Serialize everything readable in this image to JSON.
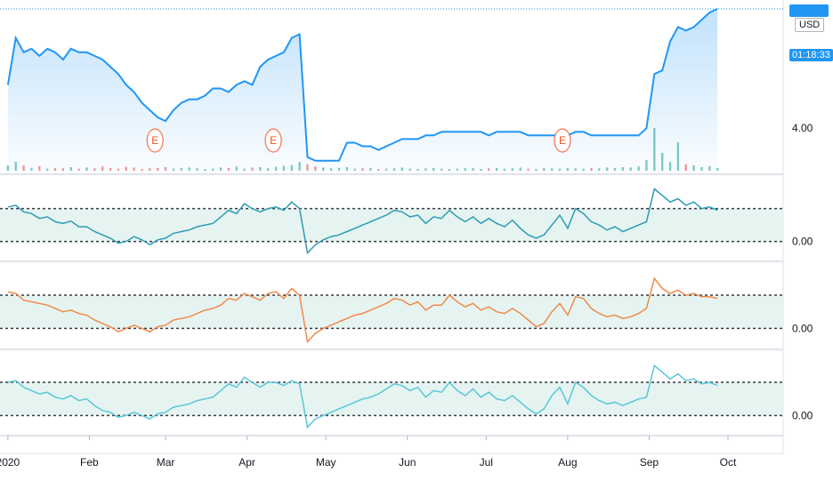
{
  "chart_data": [
    {
      "type": "line",
      "pane": "price",
      "currency": "USD",
      "countdown": "01:18:33",
      "y_tick_labels": [
        "4.00"
      ],
      "earnings_marker": "E",
      "earnings_x": [
        56,
        101,
        211
      ],
      "x": [
        0,
        3,
        6,
        9,
        12,
        15,
        18,
        21,
        24,
        27,
        30,
        33,
        36,
        39,
        42,
        45,
        48,
        51,
        54,
        57,
        60,
        63,
        66,
        69,
        72,
        75,
        78,
        81,
        84,
        87,
        90,
        93,
        96,
        99,
        102,
        105,
        108,
        111,
        114,
        117,
        120,
        123,
        126,
        129,
        132,
        135,
        138,
        141,
        144,
        147,
        150,
        153,
        156,
        159,
        162,
        165,
        168,
        171,
        174,
        177,
        180,
        183,
        186,
        189,
        192,
        195,
        198,
        201,
        204,
        207,
        210,
        213,
        216,
        219,
        222,
        225,
        228,
        231,
        234,
        237,
        240,
        243,
        246,
        249,
        252,
        255,
        258,
        261,
        264,
        267,
        270
      ],
      "values": [
        5.2,
        6.5,
        6.1,
        6.2,
        6.0,
        6.2,
        6.1,
        5.9,
        6.2,
        6.1,
        6.1,
        6.0,
        5.9,
        5.7,
        5.5,
        5.2,
        5.0,
        4.7,
        4.5,
        4.3,
        4.2,
        4.5,
        4.7,
        4.8,
        4.8,
        4.9,
        5.1,
        5.1,
        5.0,
        5.2,
        5.3,
        5.2,
        5.7,
        5.9,
        6.0,
        6.1,
        6.5,
        6.6,
        3.2,
        3.1,
        3.1,
        3.1,
        3.1,
        3.6,
        3.6,
        3.5,
        3.5,
        3.4,
        3.5,
        3.6,
        3.7,
        3.7,
        3.7,
        3.8,
        3.8,
        3.9,
        3.9,
        3.9,
        3.9,
        3.9,
        3.9,
        3.8,
        3.9,
        3.9,
        3.9,
        3.9,
        3.8,
        3.8,
        3.8,
        3.8,
        3.8,
        3.8,
        3.9,
        3.9,
        3.8,
        3.8,
        3.8,
        3.8,
        3.8,
        3.8,
        3.8,
        4.0,
        5.5,
        5.6,
        6.4,
        6.8,
        6.7,
        6.8,
        7.0,
        7.2,
        7.3
      ],
      "volume": [
        1.5,
        2.5,
        1.5,
        0.8,
        1.3,
        0.6,
        0.8,
        0.7,
        1.0,
        0.6,
        0.9,
        0.7,
        1.2,
        0.8,
        0.6,
        1.1,
        0.9,
        0.5,
        0.7,
        0.8,
        1.0,
        0.6,
        0.8,
        0.9,
        0.7,
        0.5,
        0.6,
        0.9,
        0.8,
        1.2,
        0.6,
        0.9,
        1.0,
        0.7,
        1.1,
        1.4,
        1.6,
        2.5,
        1.8,
        1.2,
        0.9,
        0.7,
        0.8,
        1.0,
        0.6,
        0.7,
        0.8,
        0.5,
        0.6,
        0.7,
        0.9,
        0.6,
        0.5,
        0.7,
        0.8,
        0.6,
        0.5,
        0.6,
        0.7,
        0.8,
        0.5,
        0.7,
        0.8,
        0.6,
        0.7,
        0.9,
        0.6,
        0.5,
        0.8,
        0.7,
        0.6,
        0.8,
        0.7,
        0.6,
        0.8,
        0.7,
        0.9,
        0.8,
        1.0,
        0.9,
        1.2,
        3.0,
        12.0,
        5.0,
        2.5,
        8.0,
        1.8,
        1.5,
        1.0,
        1.3,
        0.8
      ]
    },
    {
      "type": "line",
      "pane": "oscillator-1",
      "y_tick_labels": [
        "0.00"
      ],
      "band": [
        0.0,
        1.0
      ],
      "x": [
        0,
        3,
        6,
        9,
        12,
        15,
        18,
        21,
        24,
        27,
        30,
        33,
        36,
        39,
        42,
        45,
        48,
        51,
        54,
        57,
        60,
        63,
        66,
        69,
        72,
        75,
        78,
        81,
        84,
        87,
        90,
        93,
        96,
        99,
        102,
        105,
        108,
        111,
        114,
        117,
        120,
        123,
        126,
        129,
        132,
        135,
        138,
        141,
        144,
        147,
        150,
        153,
        156,
        159,
        162,
        165,
        168,
        171,
        174,
        177,
        180,
        183,
        186,
        189,
        192,
        195,
        198,
        201,
        204,
        207,
        210,
        213,
        216,
        219,
        222,
        225,
        228,
        231,
        234,
        237,
        240,
        243,
        246,
        249,
        252,
        255,
        258,
        261,
        264,
        267,
        270
      ],
      "values": [
        1.05,
        1.1,
        0.9,
        0.85,
        0.7,
        0.75,
        0.6,
        0.55,
        0.62,
        0.45,
        0.45,
        0.3,
        0.2,
        0.1,
        -0.05,
        0.0,
        0.15,
        0.05,
        -0.1,
        0.05,
        0.1,
        0.25,
        0.3,
        0.35,
        0.45,
        0.5,
        0.55,
        0.75,
        0.95,
        0.85,
        1.15,
        1.0,
        0.9,
        1.0,
        1.05,
        0.95,
        1.2,
        1.0,
        -0.35,
        -0.1,
        0.05,
        0.15,
        0.2,
        0.3,
        0.4,
        0.5,
        0.6,
        0.7,
        0.8,
        0.95,
        0.9,
        0.75,
        0.8,
        0.55,
        0.75,
        0.7,
        0.95,
        0.75,
        0.6,
        0.75,
        0.55,
        0.7,
        0.55,
        0.45,
        0.65,
        0.4,
        0.2,
        0.1,
        0.2,
        0.5,
        0.8,
        0.4,
        1.0,
        0.85,
        0.6,
        0.5,
        0.35,
        0.45,
        0.3,
        0.4,
        0.5,
        0.6,
        1.6,
        1.4,
        1.2,
        1.3,
        1.1,
        1.2,
        1.0,
        1.05,
        0.95
      ]
    },
    {
      "type": "line",
      "pane": "oscillator-2",
      "y_tick_labels": [
        "0.00"
      ],
      "band": [
        0.0,
        1.0
      ],
      "x": [
        0,
        3,
        6,
        9,
        12,
        15,
        18,
        21,
        24,
        27,
        30,
        33,
        36,
        39,
        42,
        45,
        48,
        51,
        54,
        57,
        60,
        63,
        66,
        69,
        72,
        75,
        78,
        81,
        84,
        87,
        90,
        93,
        96,
        99,
        102,
        105,
        108,
        111,
        114,
        117,
        120,
        123,
        126,
        129,
        132,
        135,
        138,
        141,
        144,
        147,
        150,
        153,
        156,
        159,
        162,
        165,
        168,
        171,
        174,
        177,
        180,
        183,
        186,
        189,
        192,
        195,
        198,
        201,
        204,
        207,
        210,
        213,
        216,
        219,
        222,
        225,
        228,
        231,
        234,
        237,
        240,
        243,
        246,
        249,
        252,
        255,
        258,
        261,
        264,
        267,
        270
      ],
      "values": [
        1.1,
        1.05,
        0.85,
        0.8,
        0.75,
        0.7,
        0.6,
        0.5,
        0.55,
        0.45,
        0.4,
        0.25,
        0.15,
        0.05,
        -0.1,
        0.0,
        0.1,
        0.0,
        -0.1,
        0.05,
        0.1,
        0.25,
        0.3,
        0.35,
        0.45,
        0.55,
        0.6,
        0.7,
        0.9,
        0.85,
        1.05,
        0.95,
        0.85,
        1.05,
        1.1,
        0.9,
        1.2,
        1.0,
        -0.4,
        -0.15,
        0.0,
        0.1,
        0.2,
        0.3,
        0.4,
        0.45,
        0.55,
        0.65,
        0.75,
        0.9,
        0.85,
        0.7,
        0.8,
        0.55,
        0.7,
        0.7,
        1.0,
        0.8,
        0.65,
        0.75,
        0.55,
        0.65,
        0.5,
        0.45,
        0.6,
        0.45,
        0.25,
        0.05,
        0.15,
        0.5,
        0.75,
        0.4,
        0.95,
        0.9,
        0.6,
        0.45,
        0.35,
        0.4,
        0.3,
        0.35,
        0.45,
        0.6,
        1.5,
        1.2,
        1.05,
        1.15,
        1.0,
        1.05,
        0.95,
        0.95,
        0.9
      ]
    },
    {
      "type": "line",
      "pane": "oscillator-3",
      "y_tick_labels": [
        "0.00"
      ],
      "band": [
        0.0,
        1.0
      ],
      "x": [
        0,
        3,
        6,
        9,
        12,
        15,
        18,
        21,
        24,
        27,
        30,
        33,
        36,
        39,
        42,
        45,
        48,
        51,
        54,
        57,
        60,
        63,
        66,
        69,
        72,
        75,
        78,
        81,
        84,
        87,
        90,
        93,
        96,
        99,
        102,
        105,
        108,
        111,
        114,
        117,
        120,
        123,
        126,
        129,
        132,
        135,
        138,
        141,
        144,
        147,
        150,
        153,
        156,
        159,
        162,
        165,
        168,
        171,
        174,
        177,
        180,
        183,
        186,
        189,
        192,
        195,
        198,
        201,
        204,
        207,
        210,
        213,
        216,
        219,
        222,
        225,
        228,
        231,
        234,
        237,
        240,
        243,
        246,
        249,
        252,
        255,
        258,
        261,
        264,
        267,
        270
      ],
      "values": [
        1.0,
        1.05,
        0.85,
        0.75,
        0.65,
        0.7,
        0.55,
        0.5,
        0.6,
        0.45,
        0.5,
        0.3,
        0.15,
        0.1,
        -0.05,
        0.0,
        0.1,
        0.0,
        -0.1,
        0.05,
        0.1,
        0.25,
        0.3,
        0.35,
        0.45,
        0.5,
        0.55,
        0.75,
        0.95,
        0.85,
        1.15,
        1.0,
        0.85,
        1.0,
        1.0,
        0.9,
        1.05,
        0.95,
        -0.35,
        -0.1,
        0.0,
        0.1,
        0.2,
        0.3,
        0.4,
        0.5,
        0.55,
        0.65,
        0.8,
        0.95,
        0.9,
        0.75,
        0.85,
        0.55,
        0.75,
        0.7,
        1.0,
        0.75,
        0.6,
        0.8,
        0.55,
        0.7,
        0.5,
        0.45,
        0.6,
        0.4,
        0.2,
        0.05,
        0.2,
        0.6,
        0.85,
        0.35,
        1.0,
        0.85,
        0.6,
        0.45,
        0.35,
        0.4,
        0.3,
        0.4,
        0.5,
        0.55,
        1.5,
        1.3,
        1.1,
        1.25,
        1.05,
        1.1,
        0.95,
        1.0,
        0.9
      ]
    }
  ],
  "time_axis": {
    "labels": [
      {
        "label": "2020",
        "day": 0
      },
      {
        "label": "Feb",
        "day": 31
      },
      {
        "label": "Mar",
        "day": 60
      },
      {
        "label": "Apr",
        "day": 91
      },
      {
        "label": "May",
        "day": 121
      },
      {
        "label": "Jun",
        "day": 152
      },
      {
        "label": "Jul",
        "day": 182
      },
      {
        "label": "Aug",
        "day": 213
      },
      {
        "label": "Sep",
        "day": 244
      },
      {
        "label": "Oct",
        "day": 274
      }
    ]
  },
  "colors": {
    "price_line": "#2196f3",
    "price_fill": "#2196f3",
    "osc1_line": "#2d9cb5",
    "osc2_line": "#f08a4b",
    "osc3_line": "#58c7d6",
    "band_fill": "#e6f4f1",
    "volume_up": "#80cbc4",
    "volume_down": "#ef9a9a",
    "earnings": "#f4511e",
    "pane_border": "#e0e3eb",
    "dotted": "#363a45"
  }
}
